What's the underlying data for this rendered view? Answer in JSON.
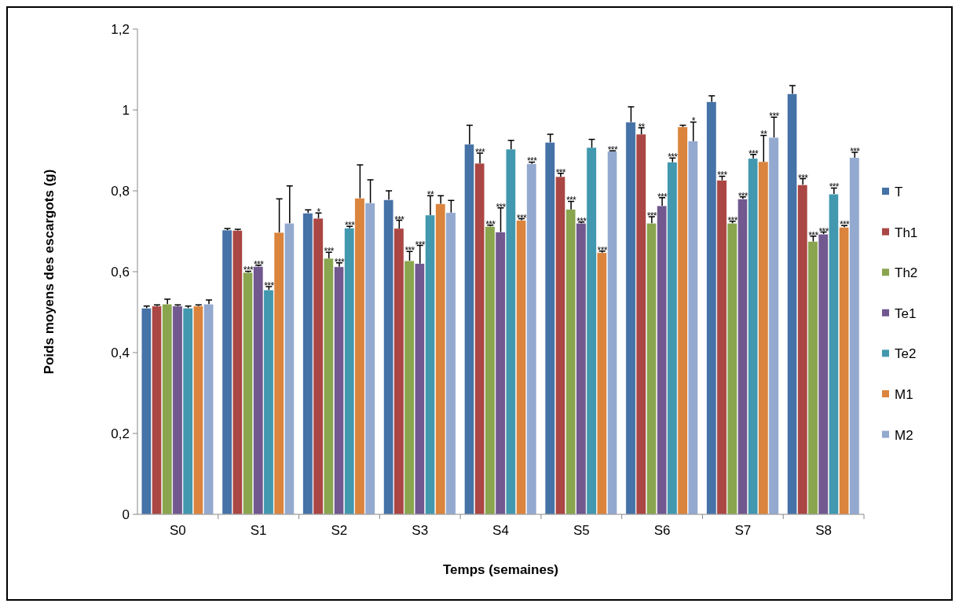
{
  "chart_data": {
    "type": "bar",
    "xlabel": "Temps (semaines)",
    "ylabel": "Poids moyens des escargots (g)",
    "categories": [
      "S0",
      "S1",
      "S2",
      "S3",
      "S4",
      "S5",
      "S6",
      "S7",
      "S8"
    ],
    "ylim": [
      0,
      1.2
    ],
    "yticks": [
      0,
      {
        "value": 0.2,
        "label": "0,2"
      },
      {
        "value": 0.4,
        "label": "0,4"
      },
      {
        "value": 0.6,
        "label": "0,6"
      },
      {
        "value": 0.8,
        "label": "0,8"
      },
      {
        "value": 1,
        "label": "1"
      },
      {
        "value": 1.2,
        "label": "1,2"
      }
    ],
    "grid": false,
    "legend": "right",
    "series": [
      {
        "name": "T",
        "color": "#4572a7",
        "values": [
          0.51,
          0.703,
          0.745,
          0.778,
          0.915,
          0.92,
          0.97,
          1.02,
          1.04
        ],
        "errors": [
          0.005,
          0.004,
          0.008,
          0.022,
          0.047,
          0.02,
          0.038,
          0.015,
          0.02
        ]
      },
      {
        "name": "Th1",
        "color": "#aa4643",
        "values": [
          0.515,
          0.702,
          0.732,
          0.707,
          0.868,
          0.835,
          0.94,
          0.826,
          0.815
        ],
        "errors": [
          0.003,
          0.003,
          0.013,
          0.02,
          0.025,
          0.008,
          0.016,
          0.01,
          0.015
        ],
        "value_labels": [
          null,
          null,
          "*",
          "***",
          "***",
          "***",
          "**",
          "***",
          "***"
        ]
      },
      {
        "name": "Th2",
        "color": "#89a54e",
        "values": [
          0.52,
          0.598,
          0.633,
          0.627,
          0.712,
          0.754,
          0.72,
          0.72,
          0.675
        ],
        "errors": [
          0.012,
          0.003,
          0.015,
          0.023,
          0.003,
          0.02,
          0.016,
          0.005,
          0.013
        ],
        "value_labels": [
          null,
          "***",
          "***",
          "***",
          "***",
          "***",
          "***",
          "***",
          "***"
        ]
      },
      {
        "name": "Te1",
        "color": "#71588f",
        "values": [
          0.515,
          0.613,
          0.612,
          0.62,
          0.698,
          0.72,
          0.763,
          0.78,
          0.693
        ],
        "errors": [
          0.003,
          0.003,
          0.01,
          0.045,
          0.06,
          0.003,
          0.02,
          0.005,
          0.005
        ],
        "value_labels": [
          null,
          "***",
          "***",
          "***",
          "***",
          "***",
          "***",
          "***",
          "***"
        ]
      },
      {
        "name": "Te2",
        "color": "#4198af",
        "values": [
          0.51,
          0.555,
          0.708,
          0.74,
          0.903,
          0.907,
          0.871,
          0.88,
          0.792
        ],
        "errors": [
          0.005,
          0.008,
          0.004,
          0.048,
          0.022,
          0.02,
          0.01,
          0.01,
          0.015
        ],
        "value_labels": [
          null,
          "***",
          "***",
          "**",
          null,
          null,
          "***",
          "***",
          "***"
        ]
      },
      {
        "name": "M1",
        "color": "#db843d",
        "values": [
          0.515,
          0.697,
          0.782,
          0.768,
          0.727,
          0.647,
          0.958,
          0.872,
          0.71
        ],
        "errors": [
          0.003,
          0.083,
          0.082,
          0.02,
          0.004,
          0.004,
          0.004,
          0.065,
          0.004
        ],
        "value_labels": [
          null,
          null,
          null,
          null,
          "***",
          "***",
          null,
          "**",
          "***"
        ]
      },
      {
        "name": "M2",
        "color": "#93a9cf",
        "values": [
          0.52,
          0.72,
          0.77,
          0.746,
          0.867,
          0.898,
          0.923,
          0.932,
          0.882
        ],
        "errors": [
          0.01,
          0.092,
          0.057,
          0.03,
          0.004,
          0.001,
          0.047,
          0.05,
          0.013
        ],
        "value_labels": [
          null,
          null,
          null,
          null,
          "***",
          "***",
          "*",
          "***",
          "***"
        ]
      }
    ]
  }
}
